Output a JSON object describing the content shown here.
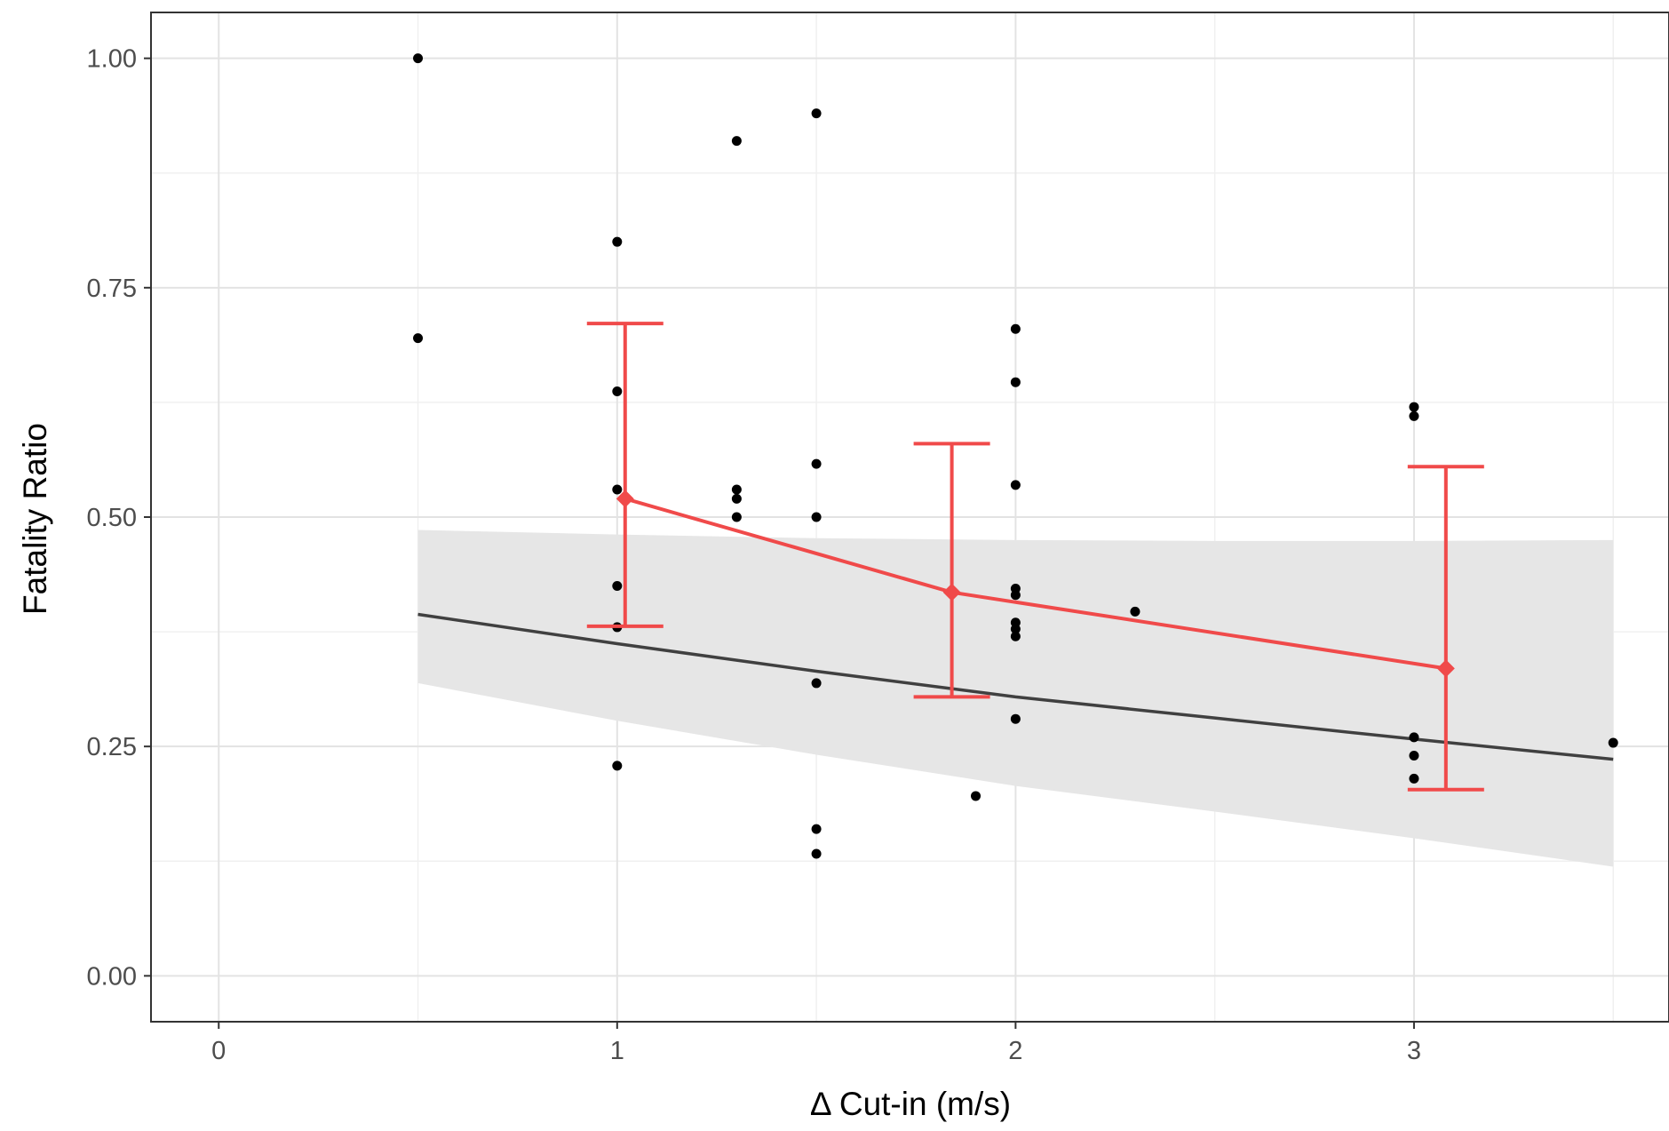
{
  "chart_data": {
    "type": "scatter",
    "title": "",
    "xlabel": "Δ Cut-in (m/s)",
    "ylabel": "Fatality Ratio",
    "xlim": [
      -0.17,
      3.64
    ],
    "ylim": [
      -0.05,
      1.05
    ],
    "x_ticks": [
      0,
      1,
      2,
      3
    ],
    "x_tick_labels": [
      "0",
      "1",
      "2",
      "3"
    ],
    "y_ticks": [
      0,
      0.25,
      0.5,
      0.75,
      1.0
    ],
    "y_tick_labels": [
      "0.00",
      "0.25",
      "0.50",
      "0.75",
      "1.00"
    ],
    "grid": true,
    "colors": {
      "points": "#000000",
      "fit_line": "#404040",
      "ribbon": "#e6e6e6",
      "summary": "#f04a4a",
      "grid_major": "#e3e3e3",
      "grid_minor": "#f0f0f0",
      "panel_border": "#333333"
    },
    "points": [
      {
        "x": 0.5,
        "y": 1.0
      },
      {
        "x": 0.5,
        "y": 0.695
      },
      {
        "x": 1.0,
        "y": 0.8
      },
      {
        "x": 1.0,
        "y": 0.637
      },
      {
        "x": 1.0,
        "y": 0.53
      },
      {
        "x": 1.0,
        "y": 0.425
      },
      {
        "x": 1.0,
        "y": 0.38
      },
      {
        "x": 1.0,
        "y": 0.229
      },
      {
        "x": 1.3,
        "y": 0.91
      },
      {
        "x": 1.3,
        "y": 0.53
      },
      {
        "x": 1.3,
        "y": 0.52
      },
      {
        "x": 1.3,
        "y": 0.5
      },
      {
        "x": 1.5,
        "y": 0.94
      },
      {
        "x": 1.5,
        "y": 0.558
      },
      {
        "x": 1.5,
        "y": 0.5
      },
      {
        "x": 1.5,
        "y": 0.319
      },
      {
        "x": 1.5,
        "y": 0.16
      },
      {
        "x": 1.5,
        "y": 0.133
      },
      {
        "x": 1.9,
        "y": 0.196
      },
      {
        "x": 2.0,
        "y": 0.705
      },
      {
        "x": 2.0,
        "y": 0.647
      },
      {
        "x": 2.0,
        "y": 0.535
      },
      {
        "x": 2.0,
        "y": 0.422
      },
      {
        "x": 2.0,
        "y": 0.415
      },
      {
        "x": 2.0,
        "y": 0.385
      },
      {
        "x": 2.0,
        "y": 0.378
      },
      {
        "x": 2.0,
        "y": 0.37
      },
      {
        "x": 2.0,
        "y": 0.28
      },
      {
        "x": 2.3,
        "y": 0.397
      },
      {
        "x": 3.0,
        "y": 0.62
      },
      {
        "x": 3.0,
        "y": 0.61
      },
      {
        "x": 3.0,
        "y": 0.26
      },
      {
        "x": 3.0,
        "y": 0.24
      },
      {
        "x": 3.0,
        "y": 0.215
      },
      {
        "x": 3.5,
        "y": 0.254
      }
    ],
    "fit": {
      "x": [
        0.5,
        1.0,
        1.5,
        2.0,
        2.5,
        3.0,
        3.5
      ],
      "y": [
        0.394,
        0.362,
        0.332,
        0.304,
        0.281,
        0.258,
        0.236
      ],
      "lower": [
        0.319,
        0.278,
        0.241,
        0.207,
        0.179,
        0.15,
        0.119
      ],
      "upper": [
        0.486,
        0.481,
        0.477,
        0.475,
        0.474,
        0.474,
        0.475
      ]
    },
    "summary": [
      {
        "x": 1.02,
        "y": 0.52,
        "lower": 0.381,
        "upper": 0.711
      },
      {
        "x": 1.84,
        "y": 0.418,
        "lower": 0.304,
        "upper": 0.58
      },
      {
        "x": 3.08,
        "y": 0.335,
        "lower": 0.203,
        "upper": 0.555
      }
    ]
  }
}
